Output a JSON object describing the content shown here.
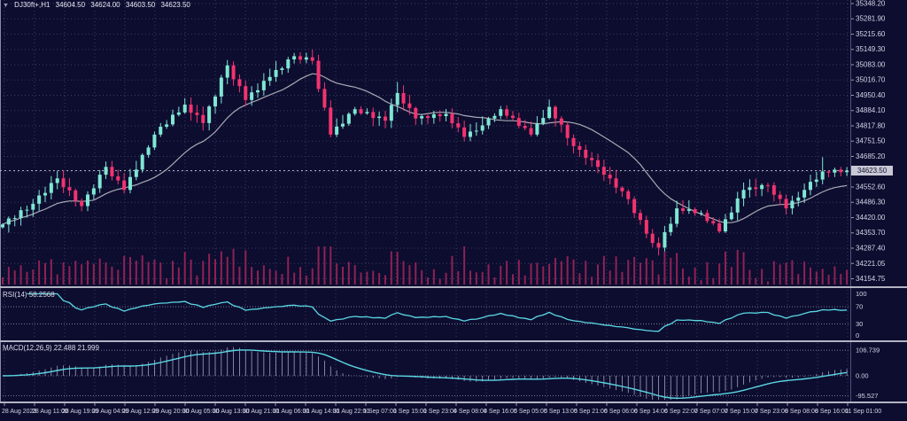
{
  "header": {
    "marker_icon": "▼",
    "symbol_timeframe": "DJ30ft+,H1",
    "open": "34604.50",
    "high": "34624.00",
    "low": "34603.50",
    "close": "34623.50"
  },
  "chart_data": {
    "type": "candlestick",
    "symbol": "DJ30ft+",
    "timeframe": "H1",
    "current_price": "34623.50",
    "price_axis_labels": [
      "35348.20",
      "35281.90",
      "35215.60",
      "35149.30",
      "35083.00",
      "35016.70",
      "34950.40",
      "34884.10",
      "34817.80",
      "34751.50",
      "34685.20",
      "34552.60",
      "34486.30",
      "34420.00",
      "34353.70",
      "34287.40",
      "34221.05",
      "34154.75"
    ],
    "time_axis_labels": [
      "28 Aug 2023",
      "28 Aug 11:00",
      "28 Aug 19:00",
      "29 Aug 04:00",
      "29 Aug 12:00",
      "29 Aug 20:00",
      "30 Aug 05:00",
      "30 Aug 13:00",
      "30 Aug 21:00",
      "31 Aug 06:00",
      "31 Aug 14:00",
      "31 Aug 22:00",
      "1 Sep 07:00",
      "1 Sep 15:00",
      "1 Sep 23:00",
      "4 Sep 08:00",
      "4 Sep 16:00",
      "5 Sep 05:00",
      "5 Sep 13:00",
      "5 Sep 21:00",
      "6 Sep 06:00",
      "6 Sep 14:00",
      "6 Sep 22:00",
      "7 Sep 07:00",
      "7 Sep 15:00",
      "7 Sep 23:00",
      "8 Sep 08:00",
      "8 Sep 16:00",
      "11 Sep 01:00"
    ],
    "closes": [
      34390,
      34416,
      34418,
      34452,
      34454,
      34480,
      34516,
      34527,
      34570,
      34590,
      34552,
      34538,
      34492,
      34470,
      34520,
      34547,
      34606,
      34640,
      34599,
      34581,
      34540,
      34596,
      34628,
      34692,
      34724,
      34780,
      34814,
      34824,
      34866,
      34876,
      34910,
      34875,
      34865,
      34830,
      34902,
      34945,
      35027,
      35080,
      35020,
      34990,
      34930,
      34963,
      34972,
      35013,
      35030,
      35060,
      35067,
      35106,
      35120,
      35105,
      35115,
      35100,
      34978,
      34897,
      34780,
      34815,
      34827,
      34870,
      34890,
      34872,
      34878,
      34852,
      34858,
      34840,
      34908,
      34960,
      34915,
      34895,
      34850,
      34860,
      34852,
      34868,
      34860,
      34870,
      34829,
      34811,
      34770,
      34793,
      34797,
      34820,
      34849,
      34861,
      34890,
      34862,
      34852,
      34818,
      34808,
      34780,
      34828,
      34852,
      34900,
      34850,
      34823,
      34765,
      34730,
      34714,
      34679,
      34669,
      34640,
      34606,
      34590,
      34550,
      34534,
      34500,
      34440,
      34410,
      34350,
      34310,
      34290,
      34357,
      34393,
      34460,
      34449,
      34456,
      34439,
      34440,
      34405,
      34395,
      34360,
      34413,
      34442,
      34503,
      34540,
      34551,
      34544,
      34561,
      34560,
      34519,
      34501,
      34460,
      34493,
      34507,
      34540,
      34575,
      34585,
      34620,
      34615,
      34628,
      34617,
      34624
    ],
    "wick_overrides": {
      "37": [
        35103,
        null
      ],
      "51": [
        35149,
        null
      ],
      "65": [
        35008,
        null
      ],
      "90": [
        34932,
        null
      ],
      "108": [
        null,
        34256
      ],
      "135": [
        34682,
        null
      ]
    },
    "ma_period": 16,
    "rsi": {
      "label": "RSI(14) 58.2568",
      "period": 14,
      "axis_labels": [
        "100",
        "70",
        "30",
        "0"
      ],
      "level_lines": [
        70,
        30
      ]
    },
    "macd": {
      "label": "MACD(12,26,9) 22.488 21.999",
      "fast": 12,
      "slow": 26,
      "signal": 9,
      "axis_labels": [
        "106.739",
        "0.00",
        "-95.527"
      ]
    },
    "colors": {
      "bull": "#7fe7d3",
      "bear": "#f2336f",
      "ma": "#a9a9b4",
      "volume": "#8e2253",
      "indicator_line": "#5ad8e2",
      "histogram": "#a2a2ba",
      "grid": "#3b3b64",
      "axis_text": "#d4d4e4",
      "separator": "#b3b3c3",
      "price_line": "#c4c4d2",
      "tag_bg": "#c9c9d6",
      "tag_text": "#11112f",
      "background": "#0d0d30"
    }
  }
}
